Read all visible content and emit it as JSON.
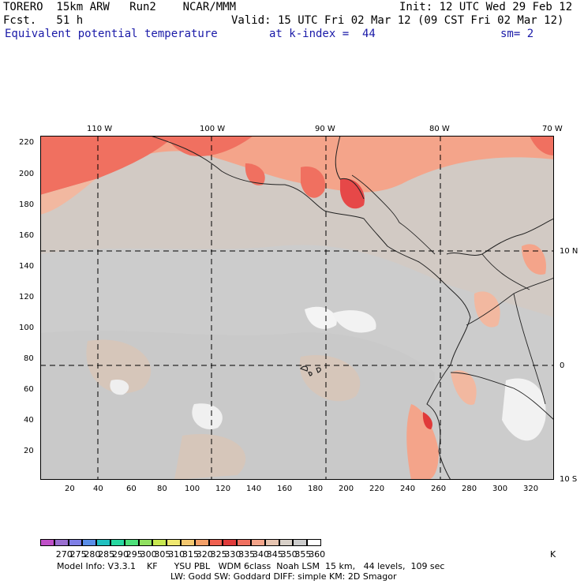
{
  "header": {
    "model_run": "TORERO  15km ARW   Run2    NCAR/MMM",
    "forecast": "Fcst.   51 h",
    "init": "Init: 12 UTC Wed 29 Feb 12",
    "valid": "Valid: 15 UTC Fri 02 Mar 12 (09 CST Fri 02 Mar 12)",
    "field": "Equivalent potential temperature",
    "level": "at k-index =  44",
    "smoothing": "sm= 2"
  },
  "map": {
    "top_lon_labels": [
      "110 W",
      "100 W",
      "90 W",
      "80 W",
      "70 W"
    ],
    "right_lat_labels": [
      "10 N",
      "0",
      "10 S"
    ],
    "left_y_ticks": [
      "220",
      "200",
      "180",
      "160",
      "140",
      "120",
      "100",
      "80",
      "60",
      "40",
      "20"
    ],
    "bottom_x_ticks": [
      "20",
      "40",
      "60",
      "80",
      "100",
      "120",
      "140",
      "160",
      "180",
      "200",
      "220",
      "240",
      "260",
      "280",
      "300",
      "320"
    ],
    "land_color": "#222222",
    "grid_color": "#000000"
  },
  "colorbar": {
    "unit": "K",
    "labels": [
      "270",
      "275",
      "280",
      "285",
      "290",
      "295",
      "300",
      "305",
      "310",
      "315",
      "320",
      "325",
      "330",
      "335",
      "340",
      "345",
      "350",
      "355",
      "360"
    ],
    "colors": [
      "#c050c8",
      "#9a6fd0",
      "#7f7fe6",
      "#5a8ee8",
      "#20c0c0",
      "#28d8a0",
      "#4ee07a",
      "#90e060",
      "#c8e850",
      "#f0e870",
      "#f4c870",
      "#f4a068",
      "#f06050",
      "#e03a3a",
      "#f07060",
      "#f4a48a",
      "#e6c4b0",
      "#d8d0c8",
      "#cccccc",
      "#ffffff"
    ]
  },
  "footer": {
    "line1": "Model Info: V3.3.1    KF      YSU PBL   WDM 6class  Noah LSM  15 km,   44 levels,  109 sec",
    "line2": "LW: Godd SW: Goddard DIFF: simple KM: 2D Smagor"
  }
}
